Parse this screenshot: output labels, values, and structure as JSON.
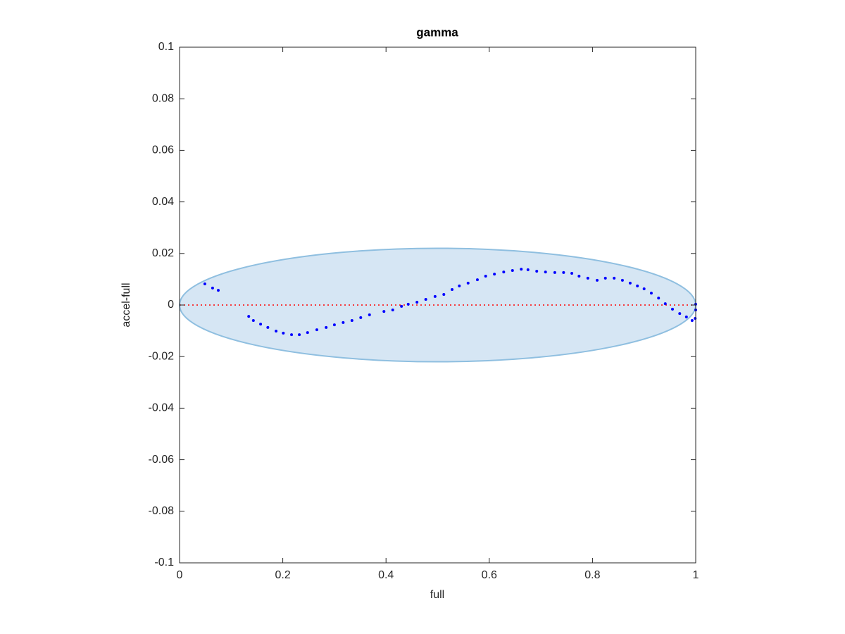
{
  "chart_data": {
    "type": "scatter",
    "title": "gamma",
    "xlabel": "full",
    "ylabel": "accel-full",
    "xlim": [
      0,
      1
    ],
    "ylim": [
      -0.1,
      0.1
    ],
    "xticks": [
      0,
      0.2,
      0.4,
      0.6,
      0.8,
      1
    ],
    "yticks": [
      -0.1,
      -0.08,
      -0.06,
      -0.04,
      -0.02,
      0,
      0.02,
      0.04,
      0.06,
      0.08,
      0.1
    ],
    "color": "#0000ff",
    "ellipse": {
      "center": [
        0.5,
        0
      ],
      "radii": [
        0.5,
        0.022
      ],
      "color": "#d6e6f4",
      "edge_color": "#8fbfe0"
    },
    "reference_line": {
      "y": 0,
      "color": "#ff0000"
    },
    "x": [
      0.049,
      0.064,
      0.075,
      0.134,
      0.143,
      0.157,
      0.171,
      0.187,
      0.201,
      0.217,
      0.232,
      0.248,
      0.266,
      0.284,
      0.3,
      0.317,
      0.334,
      0.351,
      0.368,
      0.396,
      0.413,
      0.43,
      0.443,
      0.46,
      0.477,
      0.495,
      0.512,
      0.528,
      0.542,
      0.559,
      0.577,
      0.593,
      0.61,
      0.628,
      0.645,
      0.662,
      0.675,
      0.692,
      0.709,
      0.727,
      0.744,
      0.76,
      0.774,
      0.791,
      0.809,
      0.825,
      0.842,
      0.858,
      0.873,
      0.887,
      0.9,
      0.914,
      0.928,
      0.941,
      0.955,
      0.969,
      0.982,
      0.993,
      0.999,
      1.0,
      1.0
    ],
    "values": [
      0.0082,
      0.0066,
      0.0057,
      -0.0044,
      -0.006,
      -0.0074,
      -0.0087,
      -0.0101,
      -0.0109,
      -0.0115,
      -0.0115,
      -0.0107,
      -0.0096,
      -0.0087,
      -0.0077,
      -0.0068,
      -0.006,
      -0.0049,
      -0.0038,
      -0.0025,
      -0.0019,
      -0.0005,
      0.0003,
      0.0011,
      0.0022,
      0.0033,
      0.0041,
      0.006,
      0.0074,
      0.0085,
      0.0098,
      0.0112,
      0.012,
      0.0128,
      0.0134,
      0.0139,
      0.0137,
      0.0131,
      0.0128,
      0.0126,
      0.0126,
      0.0123,
      0.0112,
      0.0104,
      0.0096,
      0.0104,
      0.0104,
      0.0096,
      0.0085,
      0.0074,
      0.0063,
      0.0046,
      0.0027,
      0.0005,
      -0.0016,
      -0.0033,
      -0.0046,
      -0.006,
      -0.0052,
      -0.0019,
      0.0003
    ]
  }
}
